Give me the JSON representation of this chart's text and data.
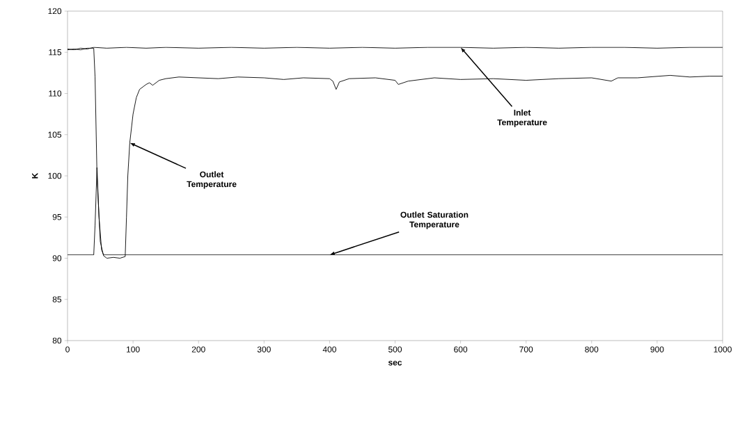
{
  "chart_data": {
    "type": "line",
    "xlabel": "sec",
    "ylabel": "K",
    "xlim": [
      0,
      1000
    ],
    "ylim": [
      80,
      120
    ],
    "xticks": [
      0,
      100,
      200,
      300,
      400,
      500,
      600,
      700,
      800,
      900,
      1000
    ],
    "yticks": [
      80,
      85,
      90,
      95,
      100,
      105,
      110,
      115,
      120
    ],
    "grid": false,
    "marker": "none",
    "line_style": "solid",
    "series": [
      {
        "color": "#000000",
        "x": [
          0,
          10,
          20,
          30,
          40,
          60,
          90,
          120,
          150,
          200,
          250,
          300,
          350,
          400,
          450,
          500,
          550,
          600,
          650,
          700,
          750,
          800,
          850,
          900,
          950,
          1000
        ],
        "values": [
          115.4,
          115.3,
          115.5,
          115.4,
          115.6,
          115.5,
          115.6,
          115.5,
          115.6,
          115.5,
          115.6,
          115.5,
          115.6,
          115.5,
          115.6,
          115.5,
          115.6,
          115.6,
          115.5,
          115.6,
          115.5,
          115.6,
          115.6,
          115.5,
          115.6,
          115.6
        ]
      },
      {
        "color": "#000000",
        "x": [
          0,
          10,
          20,
          30,
          40,
          42,
          45,
          50,
          55,
          60,
          70,
          80,
          88,
          90,
          92,
          95,
          100,
          105,
          110,
          120,
          125,
          130,
          140,
          150,
          170,
          200,
          230,
          260,
          300,
          330,
          360,
          400,
          405,
          410,
          415,
          430,
          470,
          500,
          505,
          520,
          560,
          600,
          650,
          700,
          750,
          800,
          830,
          840,
          870,
          920,
          950,
          980,
          1000
        ],
        "values": [
          115.3,
          115.4,
          115.3,
          115.5,
          115.5,
          112,
          100,
          92,
          90.3,
          90,
          90.1,
          90,
          90.2,
          95,
          100,
          104,
          107.5,
          109.5,
          110.5,
          111.1,
          111.3,
          111,
          111.6,
          111.8,
          112,
          111.9,
          111.8,
          112,
          111.9,
          111.7,
          111.9,
          111.8,
          111.5,
          110.5,
          111.4,
          111.8,
          111.9,
          111.6,
          111.1,
          111.5,
          111.9,
          111.7,
          111.8,
          111.6,
          111.8,
          111.9,
          111.5,
          111.9,
          111.9,
          112.2,
          112,
          112.1,
          112.1
        ]
      },
      {
        "color": "#000000",
        "x": [
          0,
          40,
          42,
          45,
          48,
          52,
          55,
          200,
          400,
          600,
          800,
          1000
        ],
        "values": [
          90.4,
          90.4,
          94,
          101,
          95,
          91,
          90.4,
          90.4,
          90.4,
          90.4,
          90.4,
          90.4
        ]
      }
    ],
    "annotations": [
      {
        "text": "Inlet Temperature",
        "x": 600,
        "y": 115.6
      },
      {
        "text": "Outlet Temperature",
        "x": 95,
        "y": 104
      },
      {
        "text": "Outlet Saturation Temperature",
        "x": 400,
        "y": 90.4
      }
    ]
  }
}
